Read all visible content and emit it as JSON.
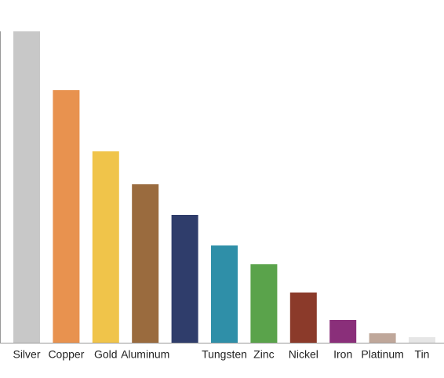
{
  "chart_data": {
    "type": "bar",
    "categories": [
      "Silver",
      "Copper",
      "Gold",
      "Aluminum",
      null,
      "Tungsten",
      "Zinc",
      "Nickel",
      "Iron",
      "Platinum",
      "Tin"
    ],
    "values": [
      397,
      322,
      244,
      202,
      163,
      124,
      100,
      64,
      29,
      12,
      7
    ],
    "colors": [
      "#c8c8c8",
      "#e8924f",
      "#f0c44a",
      "#9a6b3e",
      "#2f3d6b",
      "#2f8fa8",
      "#5aa34b",
      "#8b3a2a",
      "#8a2f7a",
      "#bfa79a",
      "#e6e6e6"
    ],
    "ylim": [
      0,
      397
    ]
  }
}
